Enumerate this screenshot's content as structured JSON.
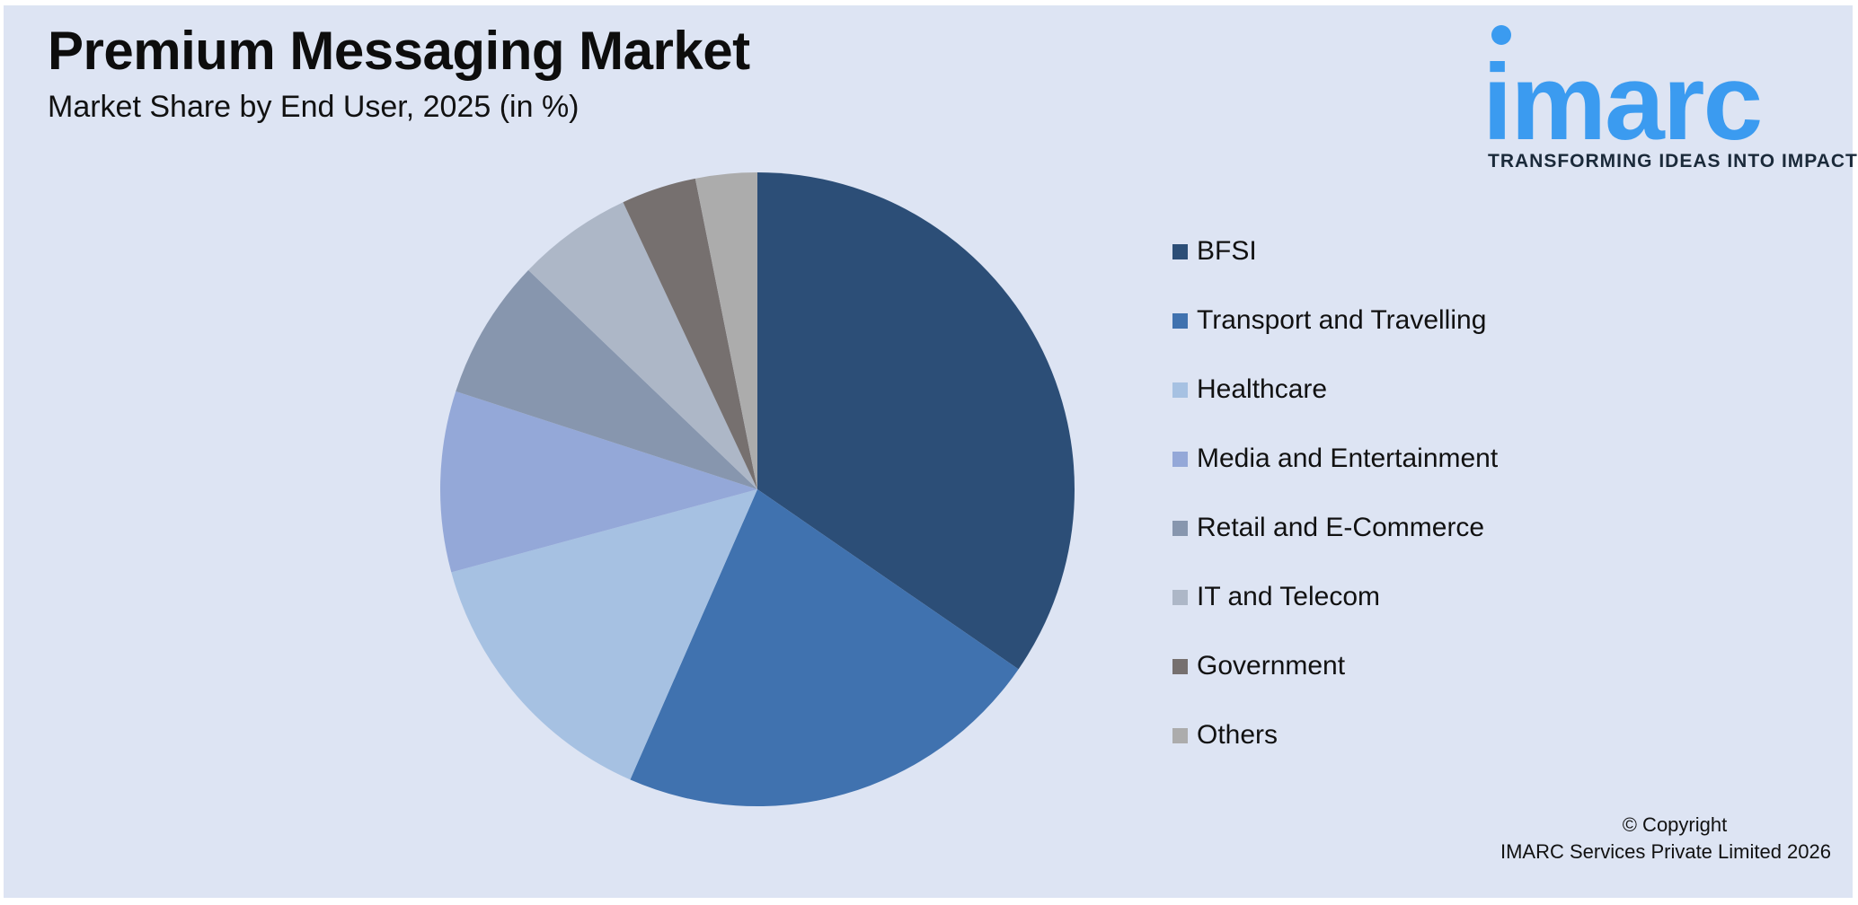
{
  "title": "Premium Messaging Market",
  "subtitle": "Market Share by End User, 2025 (in %)",
  "logo": {
    "word": "imarc",
    "tagline": "TRANSFORMING IDEAS INTO IMPACT",
    "color": "#3b9bf0"
  },
  "copyright": {
    "line1": "© Copyright",
    "line2": "IMARC Services Private Limited 2026"
  },
  "chart_data": {
    "type": "pie",
    "title": "Premium Messaging Market",
    "subtitle": "Market Share by End User, 2025 (in %)",
    "legend_position": "right",
    "start_angle": "12 o'clock, clockwise",
    "categories": [
      "BFSI",
      "Transport and Travelling",
      "Healthcare",
      "Media and Entertainment",
      "Retail and E-Commerce",
      "IT and Telecom",
      "Government",
      "Others"
    ],
    "values": [
      35.3,
      22.4,
      14.5,
      9.4,
      7.3,
      6.0,
      3.9,
      3.2
    ],
    "colors": [
      "#2c4e77",
      "#4072af",
      "#a6c1e2",
      "#94a8d8",
      "#8796ae",
      "#adb7c7",
      "#76706f",
      "#acacac"
    ]
  }
}
